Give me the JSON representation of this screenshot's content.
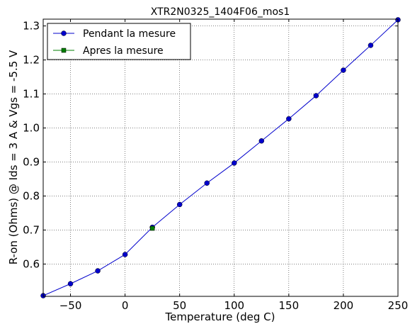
{
  "chart_data": {
    "type": "line",
    "title": "XTR2N0325_1404F06_mos1",
    "xlabel": "Temperature (deg C)",
    "ylabel": "R-on (Ohms) @ Ids = 3 A & Vgs = -5.5 V",
    "xlim": [
      -75,
      250
    ],
    "ylim": [
      0.505,
      1.32
    ],
    "xticks": [
      -50,
      0,
      50,
      100,
      150,
      200,
      250
    ],
    "xtick_labels": [
      "−50",
      "0",
      "50",
      "100",
      "150",
      "200",
      "250"
    ],
    "yticks": [
      0.6,
      0.7,
      0.8,
      0.9,
      1.0,
      1.1,
      1.2,
      1.3
    ],
    "ytick_labels": [
      "0.6",
      "0.7",
      "0.8",
      "0.9",
      "1.0",
      "1.1",
      "1.2",
      "1.3"
    ],
    "grid": true,
    "legend_position": "top-left",
    "series": [
      {
        "name": "Pendant la mesure",
        "color": "#0000cc",
        "marker": "circle",
        "x": [
          -75,
          -50,
          -25,
          0,
          25,
          50,
          75,
          100,
          125,
          150,
          175,
          200,
          225,
          250
        ],
        "y": [
          0.507,
          0.542,
          0.58,
          0.628,
          0.708,
          0.775,
          0.838,
          0.897,
          0.962,
          1.027,
          1.095,
          1.17,
          1.243,
          1.318
        ]
      },
      {
        "name": "Apres la mesure",
        "color": "#007f00",
        "marker": "square",
        "x": [
          25
        ],
        "y": [
          0.705
        ]
      }
    ]
  }
}
